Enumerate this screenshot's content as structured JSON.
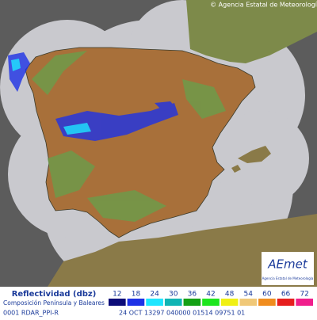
{
  "copyright": "© Agencia Estatal de Meteorología",
  "logo": {
    "name": "AEmet",
    "subtitle": "Agencia Estatal de Meteorología"
  },
  "legend": {
    "title": "Reflectividad (dbz)",
    "subtitle": "Composición Península y Baleares",
    "items": [
      {
        "value": 12,
        "color": "#0c0c78"
      },
      {
        "value": 18,
        "color": "#1e32e6"
      },
      {
        "value": 24,
        "color": "#1ee6ff"
      },
      {
        "value": 30,
        "color": "#10b4b4"
      },
      {
        "value": 36,
        "color": "#14a014"
      },
      {
        "value": 42,
        "color": "#1ee61e"
      },
      {
        "value": 48,
        "color": "#f0f014"
      },
      {
        "value": 54,
        "color": "#f0c878"
      },
      {
        "value": 60,
        "color": "#f08c1e"
      },
      {
        "value": 66,
        "color": "#e61e1e"
      },
      {
        "value": 72,
        "color": "#f01e8c"
      }
    ]
  },
  "footer": {
    "code": "0001 RDAR_PPI-R",
    "info": "24 OCT 13297 040000 01514 09751 01"
  }
}
